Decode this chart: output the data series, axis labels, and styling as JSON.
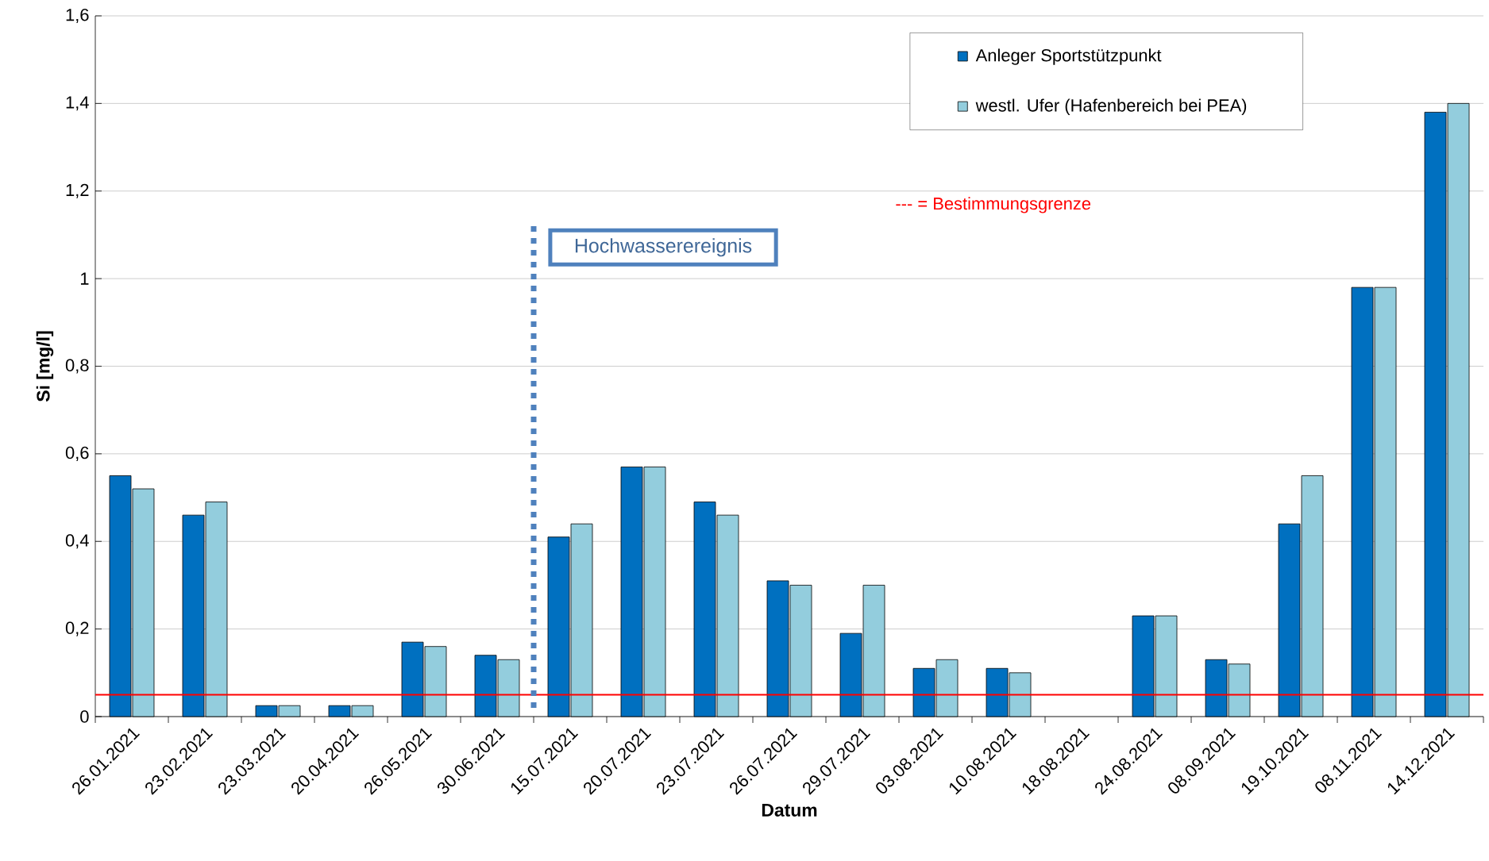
{
  "chart_data": {
    "type": "bar",
    "xlabel": "Datum",
    "ylabel": "Si [mg/l]",
    "categories": [
      "26.01.2021",
      "23.02.2021",
      "23.03.2021",
      "20.04.2021",
      "26.05.2021",
      "30.06.2021",
      "15.07.2021",
      "20.07.2021",
      "23.07.2021",
      "26.07.2021",
      "29.07.2021",
      "03.08.2021",
      "10.08.2021",
      "18.08.2021",
      "24.08.2021",
      "08.09.2021",
      "19.10.2021",
      "08.11.2021",
      "14.12.2021"
    ],
    "series": [
      {
        "name": "Anleger Sportstützpunkt",
        "color": "#0070c0",
        "values": [
          0.55,
          0.46,
          0.025,
          0.025,
          0.17,
          0.14,
          0.41,
          0.57,
          0.49,
          0.31,
          0.19,
          0.11,
          0.11,
          null,
          0.23,
          0.13,
          0.44,
          0.98,
          1.38
        ]
      },
      {
        "name": "westl. Ufer (Hafenbereich bei PEA)",
        "color": "#93cddd",
        "values": [
          0.52,
          0.49,
          0.025,
          0.025,
          0.16,
          0.13,
          0.44,
          0.57,
          0.46,
          0.3,
          0.3,
          0.13,
          0.1,
          null,
          0.23,
          0.12,
          0.55,
          0.98,
          1.4
        ]
      }
    ],
    "ylim": [
      0,
      1.6
    ],
    "yticks": [
      {
        "value": 0,
        "label": "0"
      },
      {
        "value": 0.2,
        "label": "0,2"
      },
      {
        "value": 0.4,
        "label": "0,4"
      },
      {
        "value": 0.6,
        "label": "0,6"
      },
      {
        "value": 0.8,
        "label": "0,8"
      },
      {
        "value": 1,
        "label": "1"
      },
      {
        "value": 1.2,
        "label": "1,2"
      },
      {
        "value": 1.4,
        "label": "1,4"
      },
      {
        "value": 1.6,
        "label": "1,6"
      }
    ],
    "ref_lines": [
      {
        "axis": "y",
        "value": 0.05,
        "label": "---  =  Bestimmungsgrenze",
        "color": "#ff0000",
        "line_style": "solid"
      },
      {
        "axis": "x",
        "value": "15.07.2021",
        "label": "Hochwasserereignis",
        "color": "#4f81bd",
        "line_style": "dotted"
      }
    ],
    "grid": "y",
    "legend": "top right"
  }
}
